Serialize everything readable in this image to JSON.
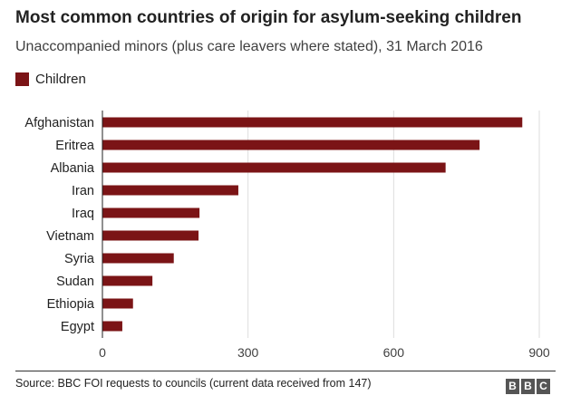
{
  "chart_data": {
    "type": "bar",
    "orientation": "horizontal",
    "title": "Most common countries of origin for asylum-seeking children",
    "subtitle": "Unaccompanied minors (plus care leavers where stated), 31 March 2016",
    "categories": [
      "Afghanistan",
      "Eritrea",
      "Albania",
      "Iran",
      "Iraq",
      "Vietnam",
      "Syria",
      "Sudan",
      "Ethiopia",
      "Egypt"
    ],
    "series": [
      {
        "name": "Children",
        "values": [
          865,
          777,
          707,
          280,
          200,
          198,
          147,
          103,
          63,
          41
        ]
      }
    ],
    "xlim": [
      0,
      900
    ],
    "xticks": [
      0,
      300,
      600,
      900
    ],
    "xtick_labels": [
      "0",
      "300",
      "600",
      "900"
    ],
    "grid": true,
    "legend_position": "top-left",
    "bar_color": "#7b1416",
    "grid_color": "#dddddd",
    "baseline_color": "#222222"
  },
  "footer": {
    "source": "Source: BBC FOI requests to councils (current data received from 147)",
    "logo_letters": [
      "B",
      "B",
      "C"
    ]
  }
}
